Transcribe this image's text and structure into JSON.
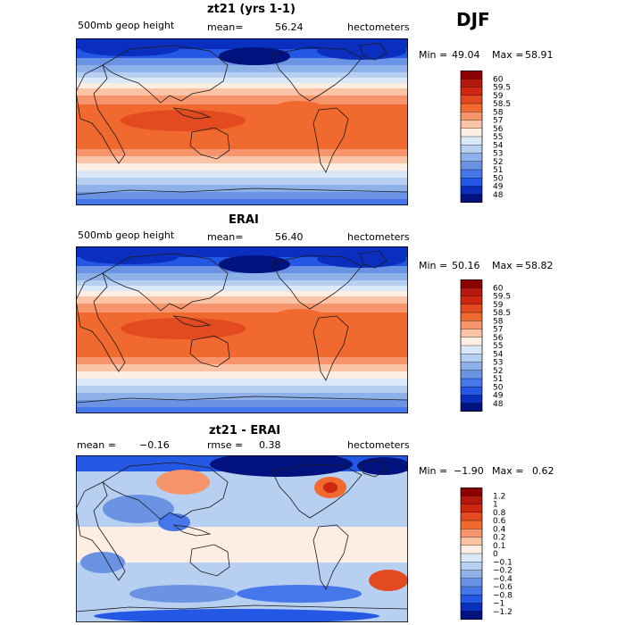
{
  "season": "DJF",
  "panels": [
    {
      "id": "model",
      "title": "zt21 (yrs 1-1)",
      "left_label": "500mb geop height",
      "stat_label": "mean=",
      "stat_value": "56.24",
      "stat2_label": "",
      "stat2_value": "",
      "units": "hectometers",
      "min_label": "Min =",
      "min_value": "49.04",
      "max_label": "Max =",
      "max_value": "58.91",
      "levels": [
        "60",
        "59.5",
        "59",
        "58.5",
        "58",
        "57",
        "56",
        "55",
        "54",
        "53",
        "52",
        "51",
        "50",
        "49",
        "48"
      ],
      "colors": [
        "#8b0000",
        "#b5180e",
        "#d02810",
        "#e34a1f",
        "#f0692f",
        "#f6956c",
        "#fbc4a6",
        "#fdeee4",
        "#dbe8f8",
        "#b7cff1",
        "#8fb1ea",
        "#6a93e4",
        "#4576ea",
        "#2457e4",
        "#0a2fbf",
        "#00127d"
      ]
    },
    {
      "id": "obs",
      "title": "ERAI",
      "left_label": "500mb geop height",
      "stat_label": "mean=",
      "stat_value": "56.40",
      "stat2_label": "",
      "stat2_value": "",
      "units": "hectometers",
      "min_label": "Min =",
      "min_value": "50.16",
      "max_label": "Max =",
      "max_value": "58.82",
      "levels": [
        "60",
        "59.5",
        "59",
        "58.5",
        "58",
        "57",
        "56",
        "55",
        "54",
        "53",
        "52",
        "51",
        "50",
        "49",
        "48"
      ],
      "colors": [
        "#8b0000",
        "#b5180e",
        "#d02810",
        "#e34a1f",
        "#f0692f",
        "#f6956c",
        "#fbc4a6",
        "#fdeee4",
        "#dbe8f8",
        "#b7cff1",
        "#8fb1ea",
        "#6a93e4",
        "#4576ea",
        "#2457e4",
        "#0a2fbf",
        "#00127d"
      ]
    },
    {
      "id": "diff",
      "title": "zt21 - ERAI",
      "left_label": "mean =",
      "left_value": "−0.16",
      "stat_label": "rmse =",
      "stat_value": "0.38",
      "units": "hectometers",
      "min_label": "Min =",
      "min_value": "−1.90",
      "max_label": "Max =",
      "max_value": "0.62",
      "levels": [
        "1.2",
        "1",
        "0.8",
        "0.6",
        "0.4",
        "0.2",
        "0.1",
        "0",
        "−0.1",
        "−0.2",
        "−0.4",
        "−0.6",
        "−0.8",
        "−1",
        "−1.2"
      ],
      "colors": [
        "#8b0000",
        "#b5180e",
        "#d02810",
        "#e34a1f",
        "#f0692f",
        "#f6956c",
        "#fbc4a6",
        "#fdeee4",
        "#dbe8f8",
        "#b7cff1",
        "#8fb1ea",
        "#6a93e4",
        "#4576ea",
        "#2457e4",
        "#0a2fbf",
        "#00127d"
      ]
    }
  ],
  "chart_data": [
    {
      "type": "heatmap",
      "title": "zt21 (yrs 1-1)",
      "variable": "500mb geop height",
      "units": "hectometers",
      "season": "DJF",
      "mean": 56.24,
      "min": 49.04,
      "max": 58.91,
      "contour_levels": [
        48,
        49,
        50,
        51,
        52,
        53,
        54,
        55,
        56,
        57,
        58,
        58.5,
        59,
        59.5,
        60
      ]
    },
    {
      "type": "heatmap",
      "title": "ERAI",
      "variable": "500mb geop height",
      "units": "hectometers",
      "season": "DJF",
      "mean": 56.4,
      "min": 50.16,
      "max": 58.82,
      "contour_levels": [
        48,
        49,
        50,
        51,
        52,
        53,
        54,
        55,
        56,
        57,
        58,
        58.5,
        59,
        59.5,
        60
      ]
    },
    {
      "type": "heatmap",
      "title": "zt21 - ERAI",
      "units": "hectometers",
      "season": "DJF",
      "mean": -0.16,
      "rmse": 0.38,
      "min": -1.9,
      "max": 0.62,
      "contour_levels": [
        -1.2,
        -1,
        -0.8,
        -0.6,
        -0.4,
        -0.2,
        -0.1,
        0,
        0.1,
        0.2,
        0.4,
        0.6,
        0.8,
        1,
        1.2
      ]
    }
  ]
}
